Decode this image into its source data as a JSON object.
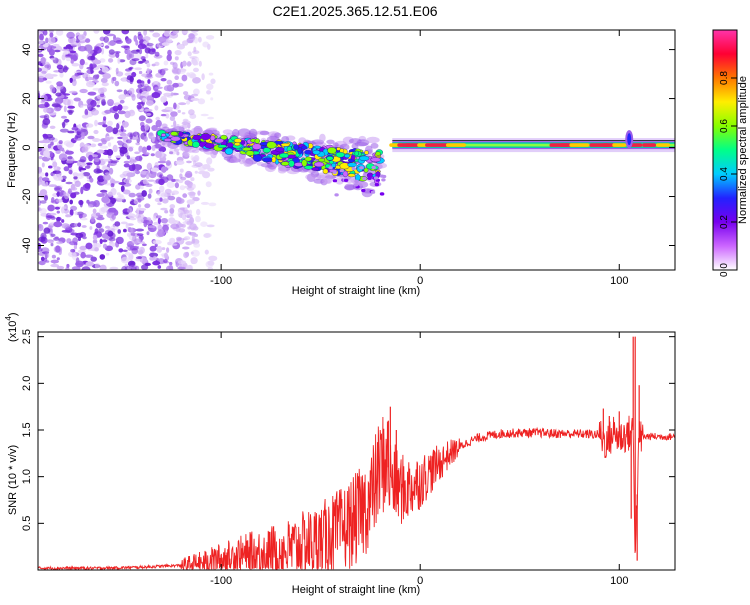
{
  "title": "C2E1.2025.365.12.51.E06",
  "colors": {
    "signal": "#ee2222",
    "scatter": "#7a2be0",
    "axis": "#000000"
  },
  "chart_data": [
    {
      "type": "heatmap",
      "xlabel": "Height of straight line (km)",
      "ylabel": "Frequency (Hz)",
      "xlim": [
        -192,
        128
      ],
      "ylim": [
        -50,
        48
      ],
      "xticks": [
        -100,
        0,
        100
      ],
      "yticks": [
        -40,
        -20,
        0,
        20,
        40
      ],
      "colorbar": {
        "label": "Normalized spectral amplitude",
        "range": [
          0,
          1
        ],
        "ticks": [
          0.0,
          0.2,
          0.4,
          0.6,
          0.8
        ],
        "tick_labels": [
          "0.0",
          "0.2",
          "0.4",
          "0.6",
          "0.8"
        ],
        "colormap": [
          "#ffffff",
          "#cc66ff",
          "#7700ee",
          "#2222ff",
          "#00ccff",
          "#00ff88",
          "#88ff00",
          "#ffee00",
          "#ff7700",
          "#ff0033",
          "#ff33aa"
        ]
      },
      "features": {
        "noise_region_x": [
          -192,
          -112
        ],
        "signal_start_x": -132,
        "drift_start": [
          -130,
          5
        ],
        "drift_end": [
          -20,
          -8
        ],
        "steady_line_start_x": -14,
        "steady_frequency": 1,
        "spur_x": 105
      }
    },
    {
      "type": "line",
      "xlabel": "Height of straight line (km)",
      "ylabel": "SNR (10 * v/v)",
      "y_multiplier": "(x10^4)",
      "y_multiplier_base": "(x10",
      "y_multiplier_exp": "4",
      "y_multiplier_close": ")",
      "xlim": [
        -192,
        128
      ],
      "ylim": [
        0,
        2.55
      ],
      "xticks": [
        -100,
        0,
        100
      ],
      "yticks": [
        0.5,
        1.0,
        1.5,
        2.0,
        2.5
      ],
      "ytick_labels": [
        "0.5",
        "1.0",
        "1.5",
        "2.0",
        "2.5"
      ],
      "x": [
        -192,
        -160,
        -140,
        -120,
        -108,
        -100,
        -90,
        -80,
        -70,
        -60,
        -50,
        -40,
        -32,
        -25,
        -20,
        -17,
        -15,
        -12,
        -8,
        -4,
        0,
        5,
        10,
        15,
        20,
        25,
        30,
        40,
        50,
        60,
        70,
        80,
        90,
        94,
        97,
        100,
        104,
        107,
        108,
        110,
        114,
        120,
        128
      ],
      "values": [
        0.02,
        0.02,
        0.03,
        0.05,
        0.08,
        0.12,
        0.15,
        0.18,
        0.2,
        0.25,
        0.32,
        0.42,
        0.55,
        0.75,
        1.1,
        1.2,
        1.0,
        0.9,
        0.85,
        0.9,
        0.95,
        1.05,
        1.15,
        1.25,
        1.32,
        1.38,
        1.42,
        1.46,
        1.47,
        1.47,
        1.46,
        1.46,
        1.45,
        1.35,
        1.48,
        1.42,
        1.45,
        1.5,
        0.2,
        1.42,
        1.43,
        1.43,
        1.43
      ],
      "spikes": [
        {
          "x": -15,
          "y": 1.75
        },
        {
          "x": -16,
          "y": 1.6
        },
        {
          "x": -12,
          "y": 1.5
        },
        {
          "x": 92,
          "y": 1.73
        },
        {
          "x": 95,
          "y": 1.65
        },
        {
          "x": 100,
          "y": 1.7
        },
        {
          "x": 107,
          "y": 2.5
        },
        {
          "x": 108,
          "y": 2.5
        },
        {
          "x": 109,
          "y": 0.1
        },
        {
          "x": 106,
          "y": 0.55
        },
        {
          "x": 110,
          "y": 1.98
        }
      ]
    }
  ]
}
